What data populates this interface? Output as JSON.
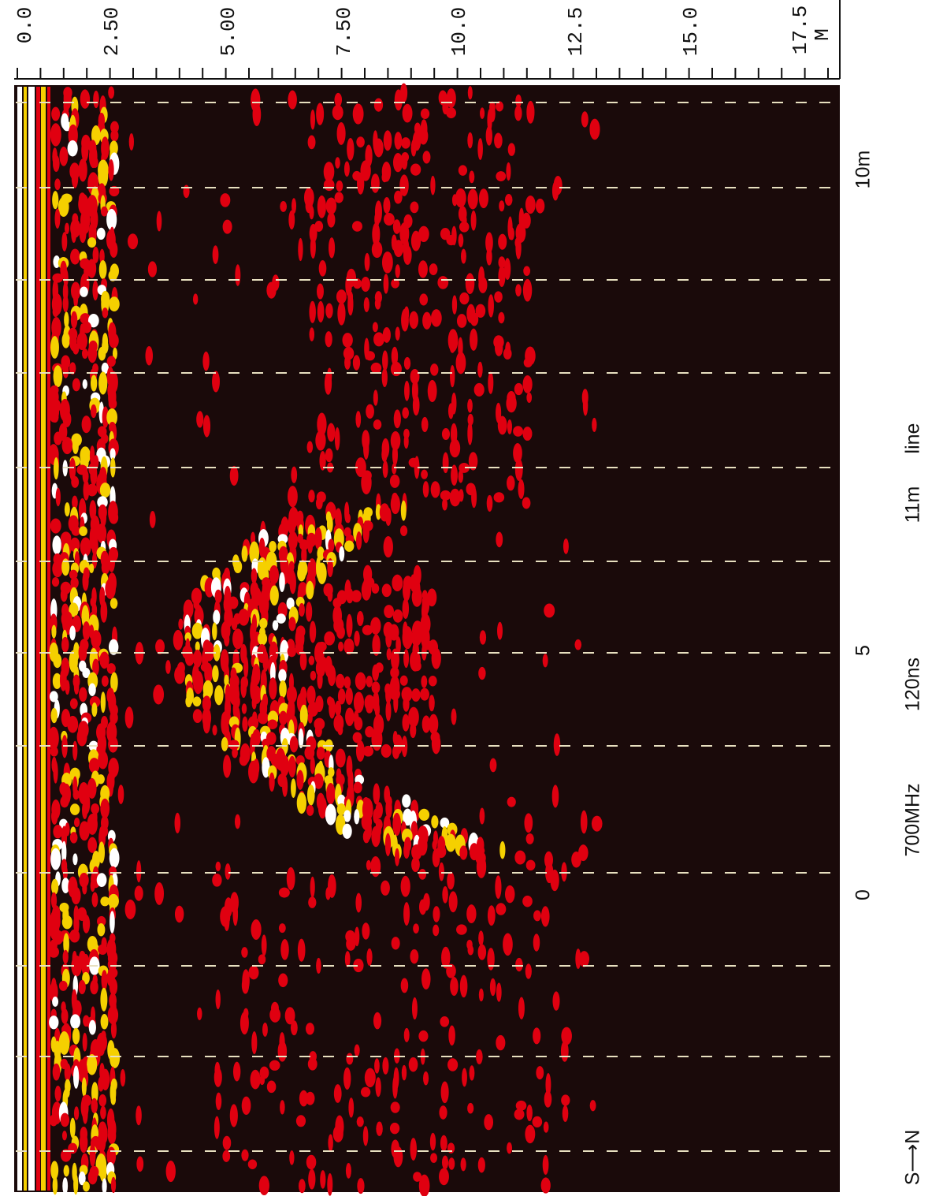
{
  "scale": {
    "ticks": [
      "0.0",
      "2.50",
      "5.00",
      "7.50",
      "10.0",
      "12.5",
      "15.0",
      "17.5"
    ],
    "unit": "M"
  },
  "distance": {
    "labels": [
      "0",
      "5",
      "10m"
    ]
  },
  "caption": {
    "direction": "S⟶N",
    "frequency": "700MHz",
    "window": "120ns",
    "length": "11m",
    "suffix": "line"
  }
}
